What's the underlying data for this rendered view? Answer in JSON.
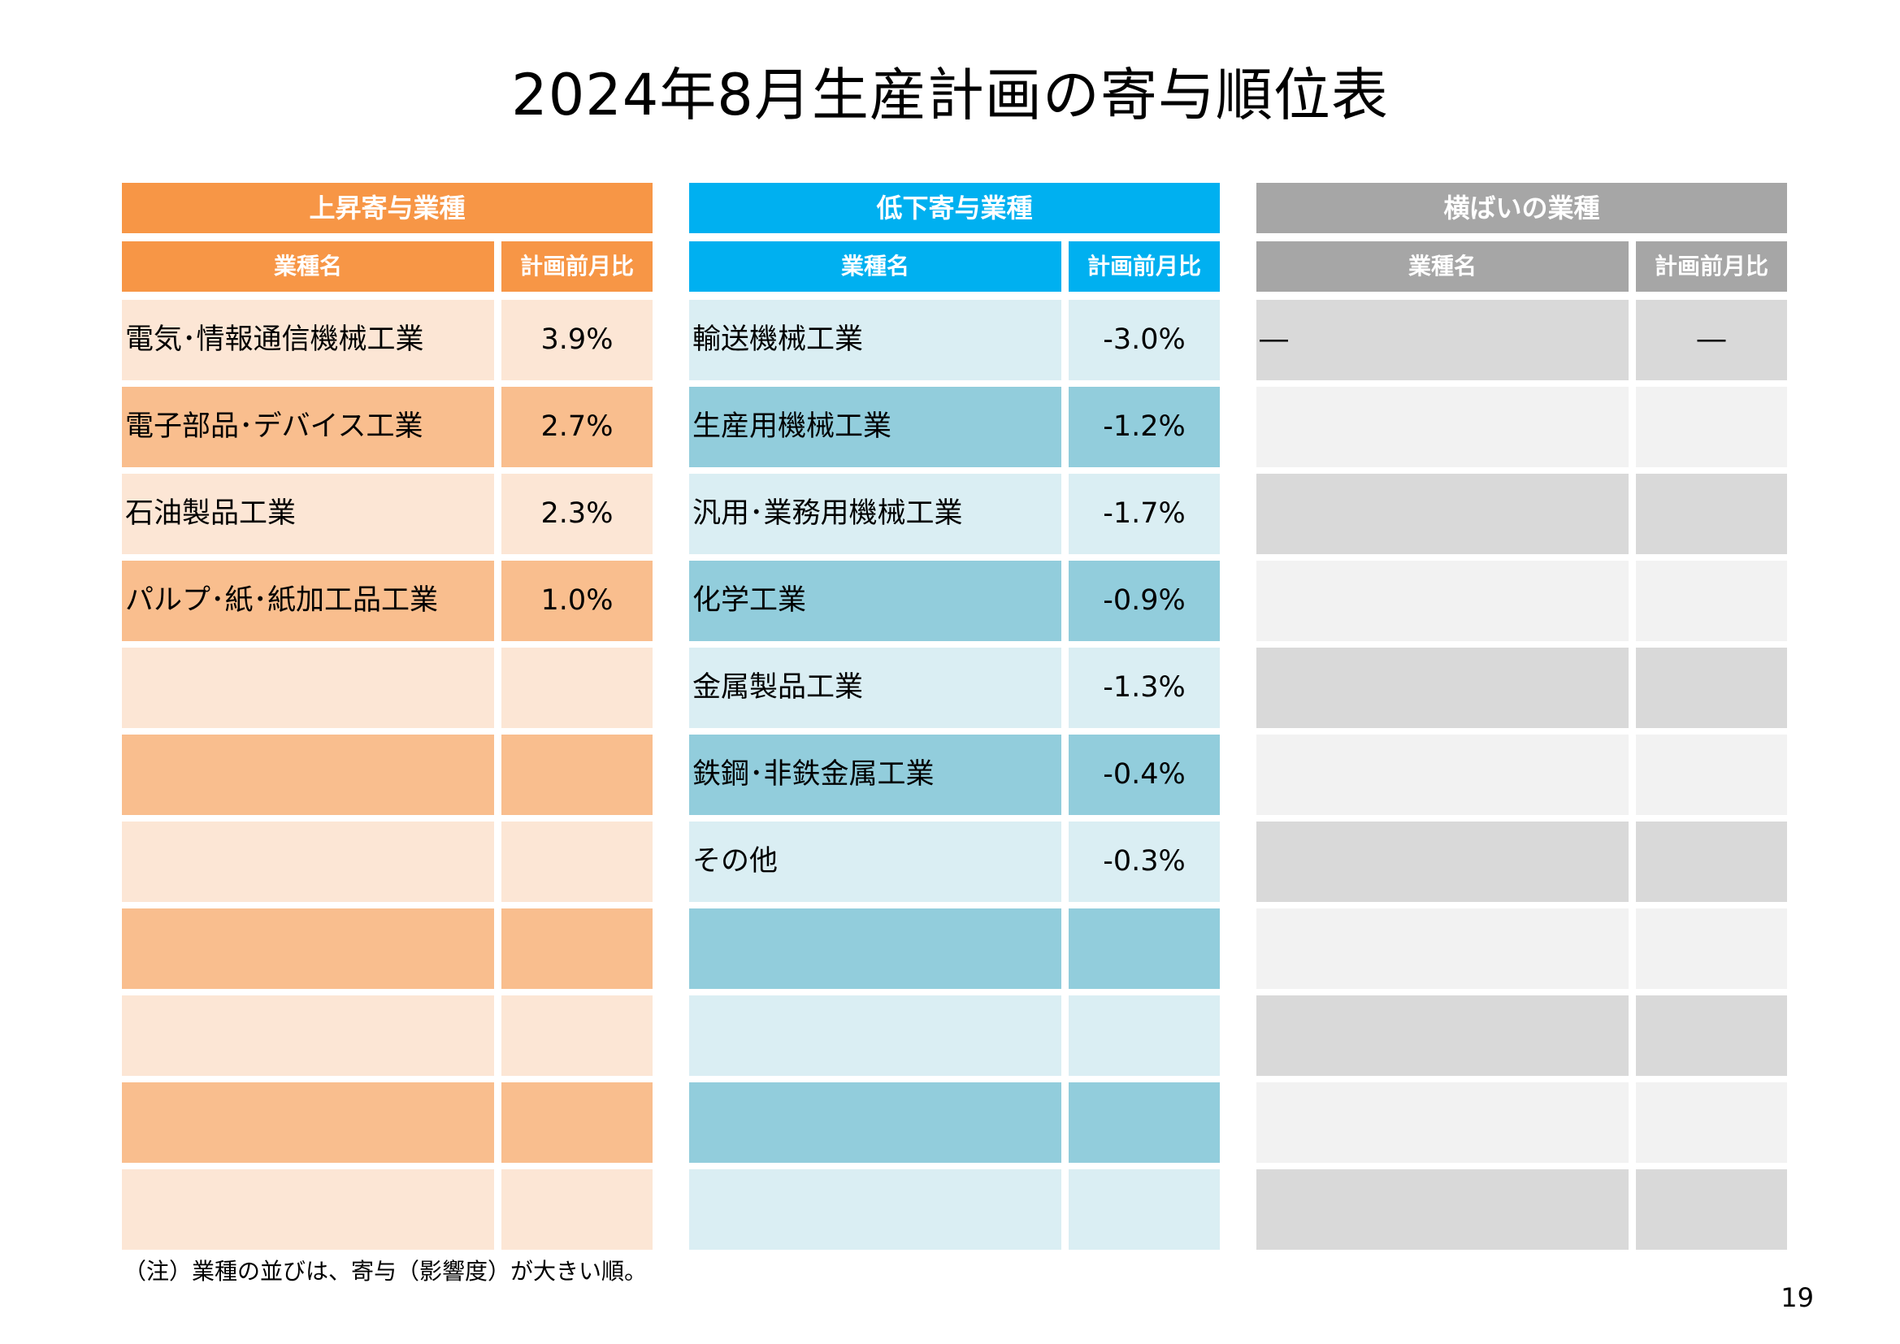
{
  "title": "2024年8月生産計画の寄与順位表",
  "columns": {
    "name_label": "業種名",
    "value_label": "計画前月比"
  },
  "panels": [
    {
      "header": "上昇寄与業種",
      "header_color": "#F79646",
      "row_color_light": "#FCE6D5",
      "row_color_dark": "#F9BE8E",
      "rows": [
        {
          "name": "電気･情報通信機械工業",
          "value": "3.9%"
        },
        {
          "name": "電子部品･デバイス工業",
          "value": "2.7%"
        },
        {
          "name": "石油製品工業",
          "value": "2.3%"
        },
        {
          "name": "パルプ･紙･紙加工品工業",
          "value": "1.0%"
        },
        {
          "name": "",
          "value": ""
        },
        {
          "name": "",
          "value": ""
        },
        {
          "name": "",
          "value": ""
        },
        {
          "name": "",
          "value": ""
        },
        {
          "name": "",
          "value": ""
        },
        {
          "name": "",
          "value": ""
        },
        {
          "name": "",
          "value": ""
        }
      ]
    },
    {
      "header": "低下寄与業種",
      "header_color": "#00B0F0",
      "row_color_light": "#DAEEF3",
      "row_color_dark": "#92CDDC",
      "rows": [
        {
          "name": "輸送機械工業",
          "value": "-3.0%"
        },
        {
          "name": "生産用機械工業",
          "value": "-1.2%"
        },
        {
          "name": "汎用･業務用機械工業",
          "value": "-1.7%"
        },
        {
          "name": "化学工業",
          "value": "-0.9%"
        },
        {
          "name": "金属製品工業",
          "value": "-1.3%"
        },
        {
          "name": "鉄鋼･非鉄金属工業",
          "value": "-0.4%"
        },
        {
          "name": "その他",
          "value": "-0.3%"
        },
        {
          "name": "",
          "value": ""
        },
        {
          "name": "",
          "value": ""
        },
        {
          "name": "",
          "value": ""
        },
        {
          "name": "",
          "value": ""
        }
      ]
    },
    {
      "header": "横ばいの業種",
      "header_color": "#A6A6A6",
      "row_color_light": "#D9D9D9",
      "row_color_dark": "#F2F2F2",
      "rows": [
        {
          "name": "―",
          "value": "―"
        },
        {
          "name": "",
          "value": ""
        },
        {
          "name": "",
          "value": ""
        },
        {
          "name": "",
          "value": ""
        },
        {
          "name": "",
          "value": ""
        },
        {
          "name": "",
          "value": ""
        },
        {
          "name": "",
          "value": ""
        },
        {
          "name": "",
          "value": ""
        },
        {
          "name": "",
          "value": ""
        },
        {
          "name": "",
          "value": ""
        },
        {
          "name": "",
          "value": ""
        }
      ]
    }
  ],
  "note": "（注）業種の並びは、寄与（影響度）が大きい順。",
  "page_number": "19"
}
